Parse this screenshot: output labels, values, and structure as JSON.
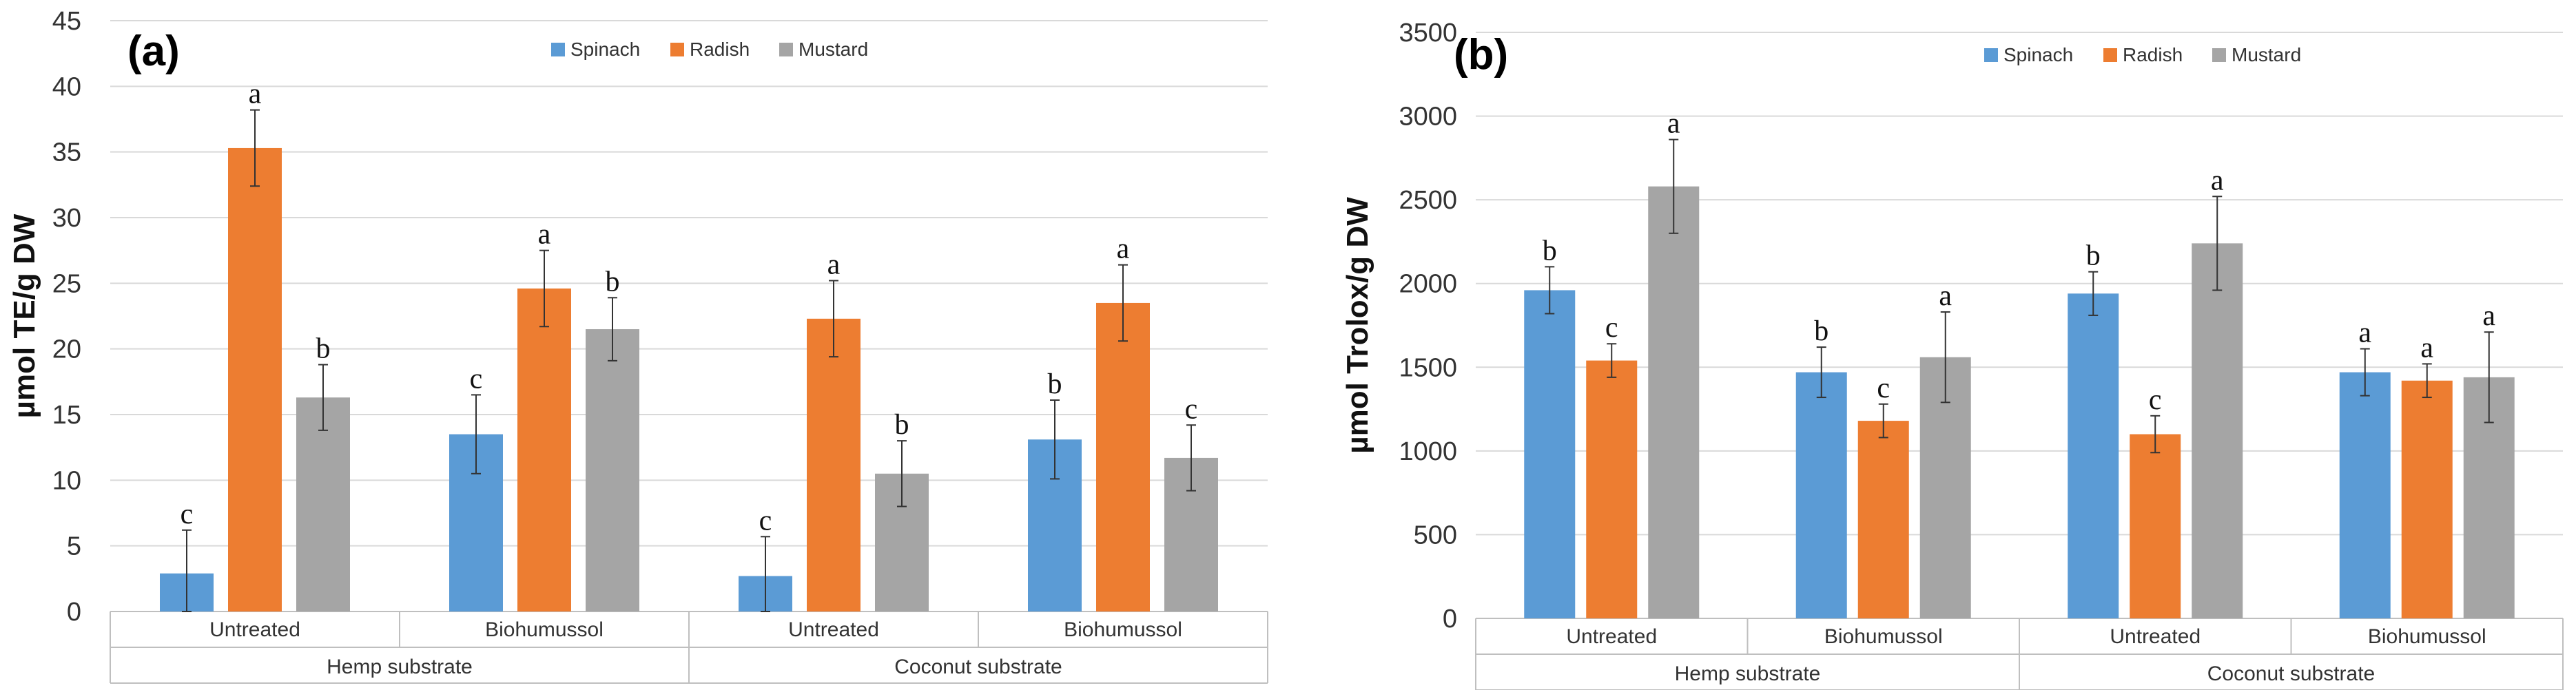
{
  "colors": {
    "spinach": "#5b9bd5",
    "radish": "#ed7d31",
    "mustard": "#a5a5a5"
  },
  "chart_data": [
    {
      "type": "bar",
      "panel_label": "(a)",
      "ylabel": "µmol TE/g DW",
      "ylim": [
        0,
        45
      ],
      "yticks": [
        "0",
        "5",
        "10",
        "15",
        "20",
        "25",
        "30",
        "35",
        "40",
        "45"
      ],
      "categories": [
        "Untreated",
        "Biohumussol",
        "Untreated",
        "Biohumussol"
      ],
      "groups": [
        "Hemp substrate",
        "Coconut substrate"
      ],
      "legend": [
        "Spinach",
        "Radish",
        "Mustard"
      ],
      "series": [
        {
          "name": "Spinach",
          "values": [
            2.9,
            13.5,
            2.7,
            13.1
          ],
          "errors": [
            3.3,
            3.0,
            3.0,
            3.0
          ],
          "letters": [
            "c",
            "c",
            "c",
            "b"
          ]
        },
        {
          "name": "Radish",
          "values": [
            35.3,
            24.6,
            22.3,
            23.5
          ],
          "errors": [
            2.9,
            2.9,
            2.9,
            2.9
          ],
          "letters": [
            "a",
            "a",
            "a",
            "a"
          ]
        },
        {
          "name": "Mustard",
          "values": [
            16.3,
            21.5,
            10.5,
            11.7
          ],
          "errors": [
            2.5,
            2.4,
            2.5,
            2.5
          ],
          "letters": [
            "b",
            "b",
            "b",
            "c"
          ]
        }
      ]
    },
    {
      "type": "bar",
      "panel_label": "(b)",
      "ylabel": "µmol Trolox/g DW",
      "ylim": [
        0,
        3500
      ],
      "yticks": [
        "0",
        "500",
        "1000",
        "1500",
        "2000",
        "2500",
        "3000",
        "3500"
      ],
      "categories": [
        "Untreated",
        "Biohumussol",
        "Untreated",
        "Biohumussol"
      ],
      "groups": [
        "Hemp substrate",
        "Coconut substrate"
      ],
      "legend": [
        "Spinach",
        "Radish",
        "Mustard"
      ],
      "series": [
        {
          "name": "Spinach",
          "values": [
            1960,
            1470,
            1940,
            1470
          ],
          "errors": [
            140,
            150,
            130,
            140
          ],
          "letters": [
            "b",
            "b",
            "b",
            "a"
          ]
        },
        {
          "name": "Radish",
          "values": [
            1540,
            1180,
            1100,
            1420
          ],
          "errors": [
            100,
            100,
            110,
            100
          ],
          "letters": [
            "c",
            "c",
            "c",
            "a"
          ]
        },
        {
          "name": "Mustard",
          "values": [
            2580,
            1560,
            2240,
            1440
          ],
          "errors": [
            280,
            270,
            280,
            270
          ],
          "letters": [
            "a",
            "a",
            "a",
            "a"
          ]
        }
      ]
    }
  ]
}
